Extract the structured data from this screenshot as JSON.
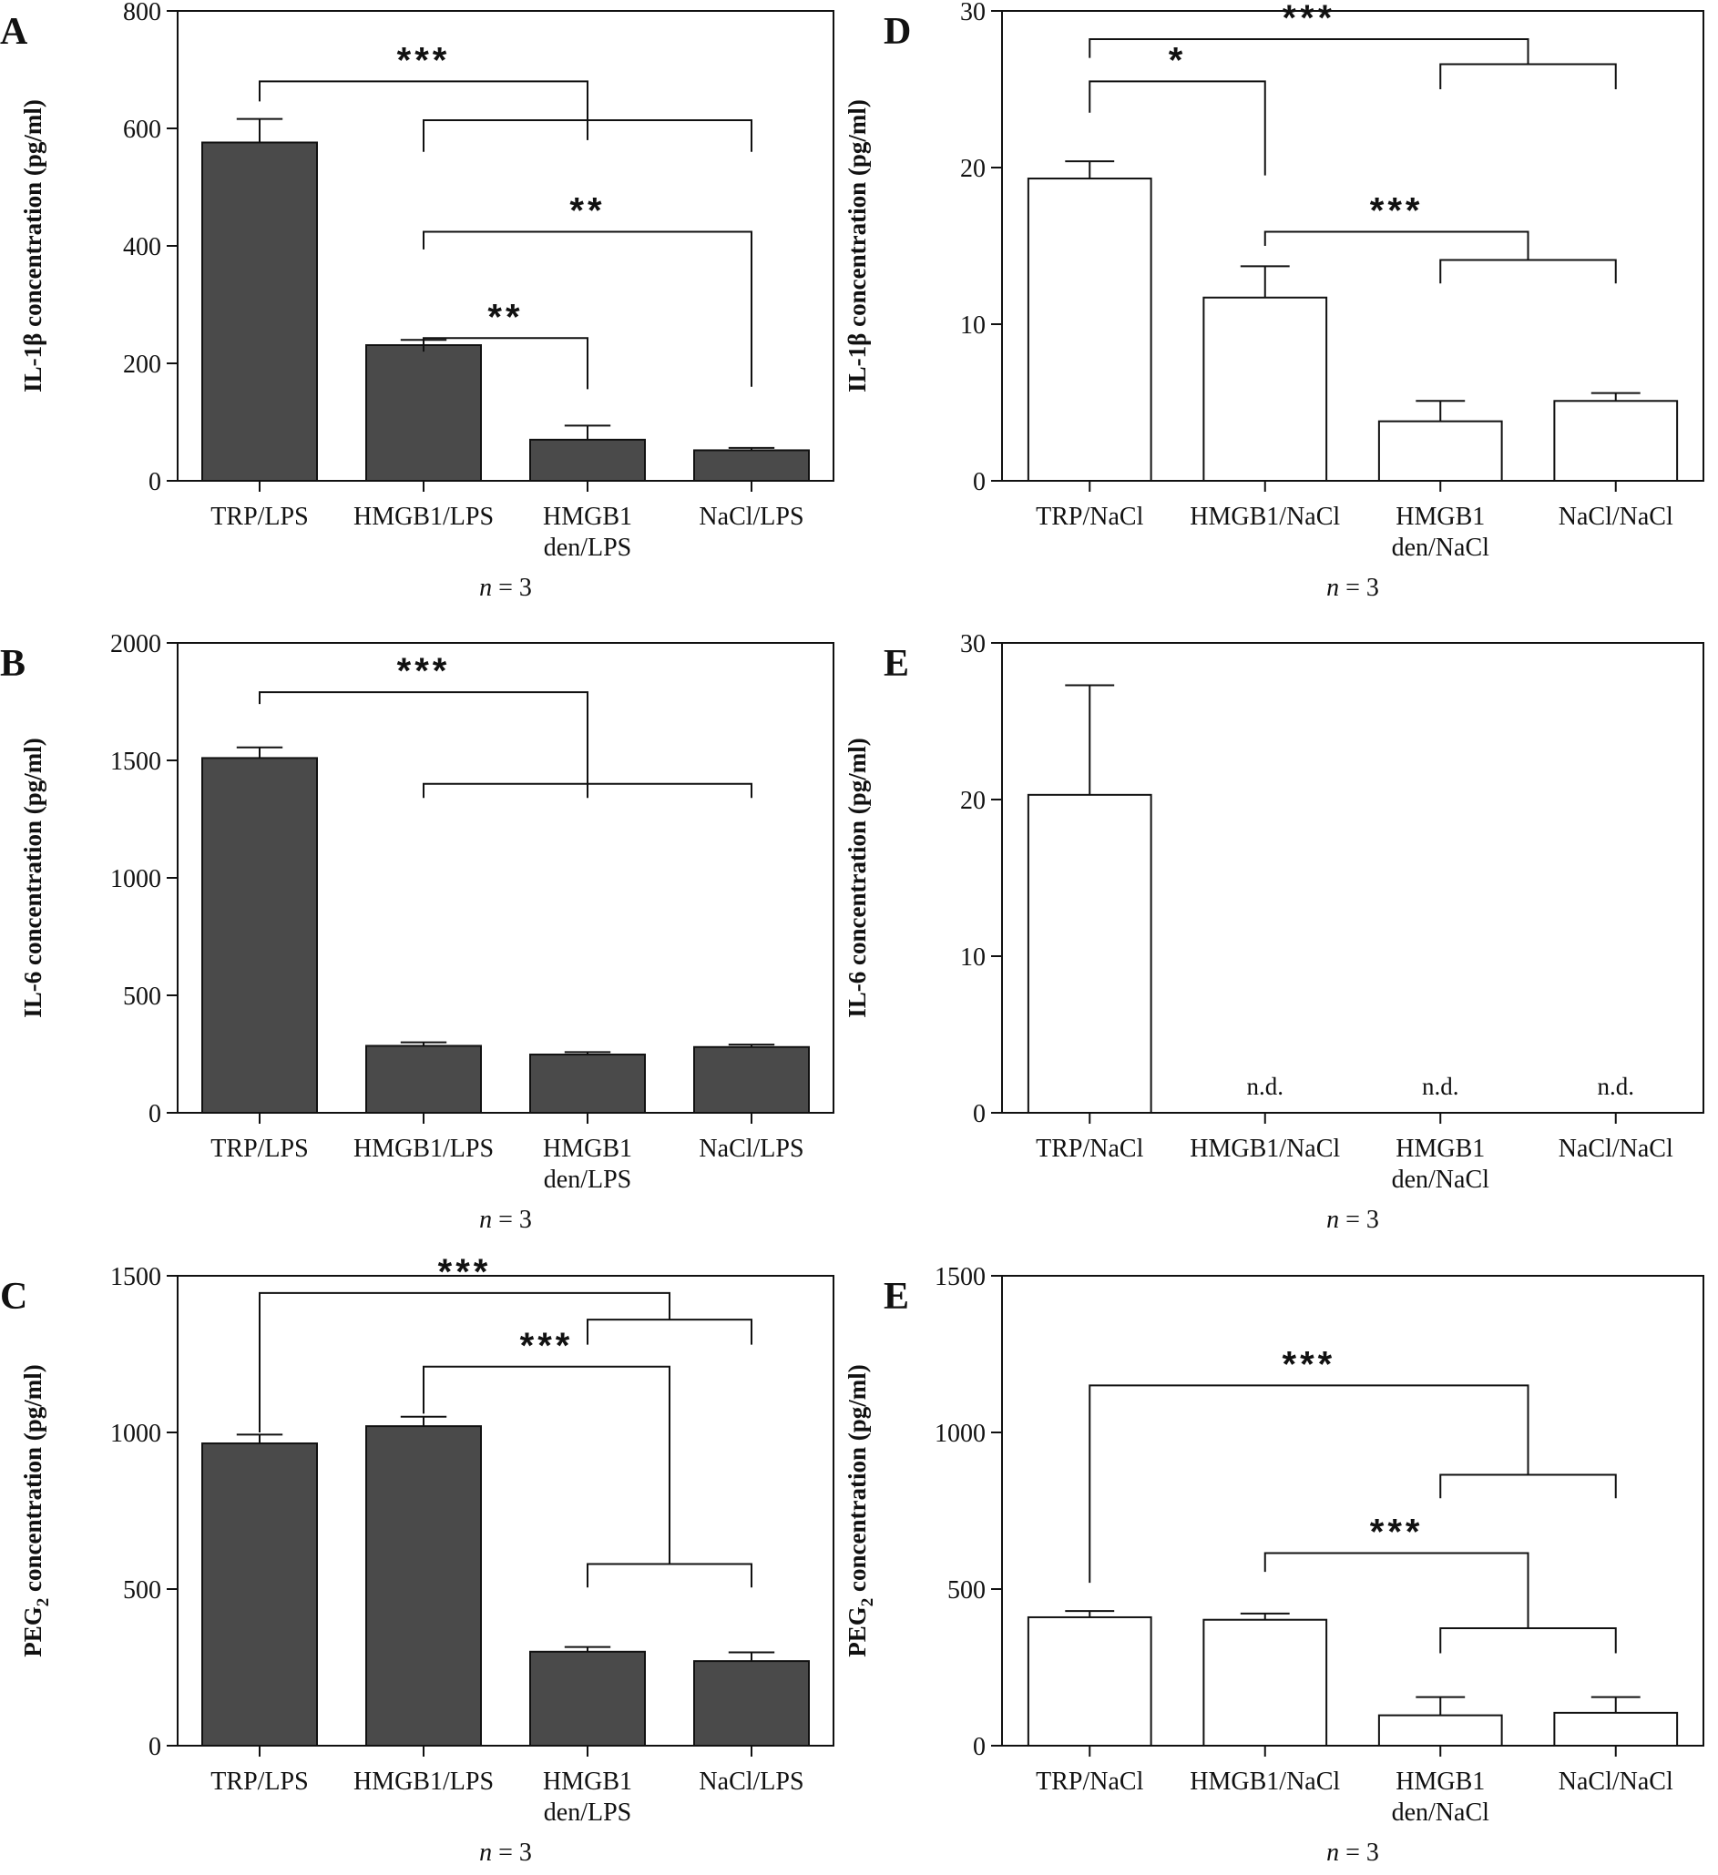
{
  "figure": {
    "colors": {
      "filled": "#4a4a4a",
      "open": "#ffffff",
      "stroke": "#111111"
    }
  },
  "chart_data": [
    {
      "panel": "A",
      "type": "bar",
      "fill": "filled",
      "ylabel": "IL-1β concentration (pg/ml)",
      "ylim": [
        0,
        800
      ],
      "yticks": [
        0,
        200,
        400,
        600,
        800
      ],
      "categories": [
        "TRP/LPS",
        "HMGB1/LPS",
        "HMGB1 den/LPS",
        "NaCl/LPS"
      ],
      "category_lines": [
        [
          "TRP/LPS"
        ],
        [
          "HMGB1/LPS"
        ],
        [
          "HMGB1",
          "den/LPS"
        ],
        [
          "NaCl/LPS"
        ]
      ],
      "values": [
        576,
        231,
        70,
        52
      ],
      "errors": [
        40,
        9,
        24,
        4
      ],
      "n_label": "n = 3",
      "brackets": [
        {
          "type": "simple",
          "from": 1,
          "to": 2,
          "y": 243,
          "bottoms": [
            220,
            156
          ],
          "label": "**"
        },
        {
          "type": "simple",
          "from": 1,
          "to": 3,
          "y": 424,
          "bottoms": [
            394,
            160
          ],
          "label": "**"
        },
        {
          "type": "simple",
          "from": 1,
          "to": 3,
          "y": 614,
          "bottoms": [
            560,
            560
          ],
          "label": ""
        },
        {
          "type": "simple",
          "from": 0,
          "to": 2,
          "y": 680,
          "bottoms": [
            646,
            580
          ],
          "label": "***"
        }
      ]
    },
    {
      "panel": "B",
      "type": "bar",
      "fill": "filled",
      "ylabel": "IL-6 concentration (pg/ml)",
      "ylim": [
        0,
        2000
      ],
      "yticks": [
        0,
        500,
        1000,
        1500,
        2000
      ],
      "categories": [
        "TRP/LPS",
        "HMGB1/LPS",
        "HMGB1 den/LPS",
        "NaCl/LPS"
      ],
      "category_lines": [
        [
          "TRP/LPS"
        ],
        [
          "HMGB1/LPS"
        ],
        [
          "HMGB1",
          "den/LPS"
        ],
        [
          "NaCl/LPS"
        ]
      ],
      "values": [
        1510,
        285,
        248,
        280
      ],
      "errors": [
        45,
        15,
        10,
        10
      ],
      "n_label": "n = 3",
      "brackets": [
        {
          "type": "simple",
          "from": 1,
          "to": 3,
          "y": 1400,
          "bottoms": [
            1340,
            1340
          ],
          "label": ""
        },
        {
          "type": "simple",
          "from": 0,
          "to": 2,
          "y": 1790,
          "bottoms": [
            1740,
            1340
          ],
          "label": "***"
        }
      ]
    },
    {
      "panel": "C",
      "type": "bar",
      "fill": "filled",
      "ylabel": "PEG2 concentration (pg/ml)",
      "ylabel_main": "PEG",
      "ylabel_sub": "2",
      "ylabel_rest": " concentration (pg/ml)",
      "ylim": [
        0,
        1500
      ],
      "yticks": [
        0,
        500,
        1000,
        1500
      ],
      "categories": [
        "TRP/LPS",
        "HMGB1/LPS",
        "HMGB1 den/LPS",
        "NaCl/LPS"
      ],
      "category_lines": [
        [
          "TRP/LPS"
        ],
        [
          "HMGB1/LPS"
        ],
        [
          "HMGB1",
          "den/LPS"
        ],
        [
          "NaCl/LPS"
        ]
      ],
      "values": [
        965,
        1020,
        300,
        270
      ],
      "errors": [
        28,
        30,
        15,
        28
      ],
      "n_label": "n = 3",
      "brackets": [
        {
          "type": "simple",
          "from": 2,
          "to": 3,
          "y": 580,
          "bottoms": [
            505,
            505
          ],
          "label": ""
        },
        {
          "type": "simple",
          "from": 2,
          "to": 3,
          "y": 1360,
          "bottoms": [
            1280,
            1280
          ],
          "label": ""
        },
        {
          "type": "tee",
          "from": 1,
          "x2": 2.5,
          "y": 1210,
          "bottoms": [
            1060,
            580
          ],
          "label": "***"
        },
        {
          "type": "tee",
          "from": 0,
          "x2": 2.5,
          "y": 1445,
          "bottoms": [
            1000,
            1360
          ],
          "label": "***"
        }
      ]
    },
    {
      "panel": "D",
      "type": "bar",
      "fill": "open",
      "ylabel": "IL-1β concentration (pg/ml)",
      "ylim": [
        0,
        30
      ],
      "yticks": [
        0,
        10,
        20,
        30
      ],
      "categories": [
        "TRP/NaCl",
        "HMGB1/NaCl",
        "HMGB1 den/NaCl",
        "NaCl/NaCl"
      ],
      "category_lines": [
        [
          "TRP/NaCl"
        ],
        [
          "HMGB1/NaCl"
        ],
        [
          "HMGB1",
          "den/NaCl"
        ],
        [
          "NaCl/NaCl"
        ]
      ],
      "values": [
        19.3,
        11.7,
        3.8,
        5.1
      ],
      "errors": [
        1.1,
        2.0,
        1.3,
        0.5
      ],
      "n_label": "n = 3",
      "brackets": [
        {
          "type": "simple",
          "from": 2,
          "to": 3,
          "y": 14.1,
          "bottoms": [
            12.6,
            12.6
          ],
          "label": ""
        },
        {
          "type": "tee",
          "from": 1,
          "x2": 2.5,
          "y": 15.9,
          "bottoms": [
            15.0,
            14.1
          ],
          "label": "***"
        },
        {
          "type": "simple",
          "from": 2,
          "to": 3,
          "y": 26.6,
          "bottoms": [
            25.0,
            25.0
          ],
          "label": ""
        },
        {
          "type": "simple",
          "from": 0,
          "to": 1,
          "y": 25.5,
          "bottoms": [
            23.5,
            19.5
          ],
          "label": "*"
        },
        {
          "type": "tee",
          "from": 0,
          "x2": 2.5,
          "y": 28.2,
          "bottoms": [
            27.0,
            26.6
          ],
          "label": "***"
        }
      ]
    },
    {
      "panel": "E",
      "type": "bar",
      "fill": "open",
      "ylabel": "IL-6 concentration (pg/ml)",
      "ylim": [
        0,
        30
      ],
      "yticks": [
        0,
        10,
        20,
        30
      ],
      "categories": [
        "TRP/NaCl",
        "HMGB1/NaCl",
        "HMGB1 den/NaCl",
        "NaCl/NaCl"
      ],
      "category_lines": [
        [
          "TRP/NaCl"
        ],
        [
          "HMGB1/NaCl"
        ],
        [
          "HMGB1",
          "den/NaCl"
        ],
        [
          "NaCl/NaCl"
        ]
      ],
      "values": [
        20.3,
        null,
        null,
        null
      ],
      "errors": [
        7.0,
        null,
        null,
        null
      ],
      "annotations": [
        "",
        "n.d.",
        "n.d.",
        "n.d."
      ],
      "n_label": "n = 3",
      "brackets": []
    },
    {
      "panel": "E",
      "type": "bar",
      "fill": "open",
      "ylabel": "PEG2 concentration (pg/ml)",
      "ylabel_main": "PEG",
      "ylabel_sub": "2",
      "ylabel_rest": " concentration (pg/ml)",
      "ylim": [
        0,
        1500
      ],
      "yticks": [
        0,
        500,
        1000,
        1500
      ],
      "categories": [
        "TRP/NaCl",
        "HMGB1/NaCl",
        "HMGB1 den/NaCl",
        "NaCl/NaCl"
      ],
      "category_lines": [
        [
          "TRP/NaCl"
        ],
        [
          "HMGB1/NaCl"
        ],
        [
          "HMGB1",
          "den/NaCl"
        ],
        [
          "NaCl/NaCl"
        ]
      ],
      "values": [
        410,
        402,
        97,
        105
      ],
      "errors": [
        20,
        20,
        58,
        50
      ],
      "n_label": "n = 3",
      "brackets": [
        {
          "type": "simple",
          "from": 2,
          "to": 3,
          "y": 375,
          "bottoms": [
            295,
            295
          ],
          "label": ""
        },
        {
          "type": "tee",
          "from": 1,
          "x2": 2.5,
          "y": 615,
          "bottoms": [
            555,
            375
          ],
          "label": "***"
        },
        {
          "type": "simple",
          "from": 2,
          "to": 3,
          "y": 865,
          "bottoms": [
            790,
            790
          ],
          "label": ""
        },
        {
          "type": "tee",
          "from": 0,
          "x2": 2.5,
          "y": 1150,
          "bottoms": [
            520,
            865
          ],
          "label": "***"
        }
      ]
    }
  ]
}
